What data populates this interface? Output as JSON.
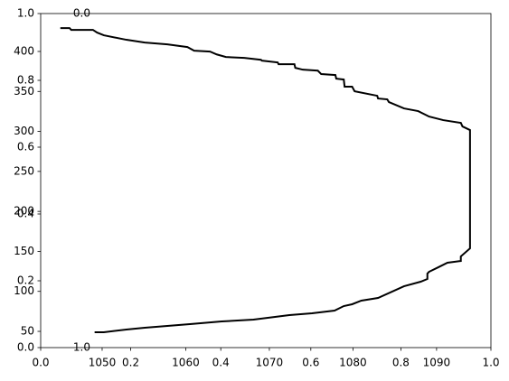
{
  "chart_data": [
    {
      "type": "line",
      "color": "#000000",
      "x": [
        1045.0,
        1046.1,
        1046.3,
        1048.9,
        1049.4,
        1050.2,
        1052.9,
        1055.1,
        1057.8,
        1060.2,
        1061.0,
        1062.9,
        1063.7,
        1064.8,
        1067.0,
        1069.0,
        1069.1,
        1071.0,
        1071.1,
        1073.0,
        1073.1,
        1074.0,
        1075.8,
        1076.2,
        1077.9,
        1078.0,
        1078.9,
        1079.0,
        1079.9,
        1080.2,
        1082.9,
        1083.0,
        1084.1,
        1084.3,
        1086.1,
        1087.8,
        1089.1,
        1090.8,
        1092.9,
        1093.1,
        1094.0,
        1094.0,
        1092.9,
        1092.9,
        1091.3,
        1090.2,
        1089.1,
        1088.9,
        1088.9,
        1088.1,
        1086.1,
        1083.0,
        1081.0,
        1079.9,
        1078.9,
        1077.8,
        1075.1,
        1072.4,
        1068.1,
        1064.3,
        1060.5,
        1055.1,
        1052.9,
        1050.2,
        1049.1
      ],
      "values": [
        429.2,
        429.2,
        427.0,
        427.0,
        423.6,
        420.2,
        414.6,
        411.2,
        408.9,
        405.5,
        401.0,
        399.9,
        396.3,
        393.1,
        391.9,
        389.6,
        388.5,
        386.3,
        384.1,
        384.1,
        379.5,
        377.2,
        376.0,
        371.7,
        370.5,
        366.0,
        364.9,
        355.9,
        355.9,
        350.2,
        344.6,
        341.2,
        340.1,
        336.7,
        328.8,
        325.4,
        318.6,
        314.1,
        310.7,
        306.2,
        301.7,
        153.8,
        143.7,
        138.0,
        135.8,
        130.1,
        124.5,
        122.2,
        115.5,
        112.1,
        106.4,
        91.8,
        88.4,
        83.9,
        81.6,
        76.0,
        72.6,
        70.3,
        64.7,
        62.4,
        59.0,
        54.5,
        52.3,
        48.9,
        48.9
      ],
      "xlim": [
        1042.65,
        1096.5
      ],
      "ylim": [
        29.7,
        447.4
      ],
      "xticks": [
        1050,
        1060,
        1070,
        1080,
        1090
      ],
      "yticks": [
        50,
        100,
        150,
        200,
        250,
        300,
        350,
        400
      ]
    },
    {
      "type": "axes",
      "xlim": [
        0,
        1
      ],
      "ylim": [
        0,
        1
      ],
      "xticks": [
        {
          "value": 0,
          "label": "0.0"
        },
        {
          "value": 0.2,
          "label": "0.2"
        },
        {
          "value": 0.4,
          "label": "0.4"
        },
        {
          "value": 0.6,
          "label": "0.6"
        },
        {
          "value": 0.8,
          "label": "0.8"
        },
        {
          "value": 1,
          "label": "1.0"
        }
      ],
      "yticks": [
        {
          "value": 0,
          "label": "0.0"
        },
        {
          "value": 0.2,
          "label": "0.2"
        },
        {
          "value": 0.4,
          "label": "0.4"
        },
        {
          "value": 0.6,
          "label": "0.6"
        },
        {
          "value": 0.8,
          "label": "0.8"
        },
        {
          "value": 1,
          "label": "1.0"
        }
      ]
    },
    {
      "type": "axes",
      "ylim": [
        1,
        0
      ],
      "yticks": [
        {
          "value": 0,
          "label": "0.0"
        },
        {
          "value": 1,
          "label": "1.0"
        }
      ]
    }
  ]
}
